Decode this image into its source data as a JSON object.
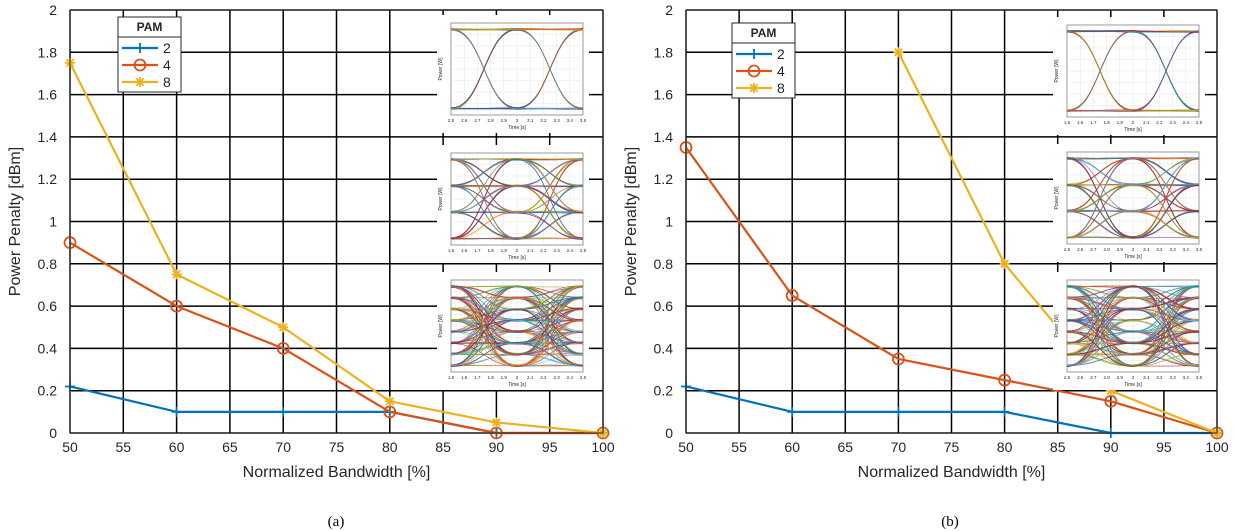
{
  "chart_data": [
    {
      "type": "line",
      "panel_label": "(a)",
      "xlabel": "Normalized Bandwidth [%]",
      "ylabel": "Power Penalty [dBm]",
      "xlim": [
        50,
        100
      ],
      "ylim": [
        0,
        2
      ],
      "xticks": [
        "50",
        "55",
        "60",
        "65",
        "70",
        "75",
        "80",
        "85",
        "90",
        "95",
        "100"
      ],
      "yticks": [
        "0",
        "0.2",
        "0.4",
        "0.6",
        "0.8",
        "1",
        "1.2",
        "1.4",
        "1.6",
        "1.8",
        "2"
      ],
      "grid": true,
      "legend": {
        "title": "PAM",
        "placement": "top-left"
      },
      "series": [
        {
          "name": "2",
          "color": "#0072BD",
          "marker": "plus",
          "points": [
            [
              50,
              0.22
            ],
            [
              60,
              0.1
            ],
            [
              70,
              0.1
            ],
            [
              80,
              0.1
            ],
            [
              90,
              0.0
            ],
            [
              100,
              0.0
            ]
          ]
        },
        {
          "name": "4",
          "color": "#D95319",
          "marker": "circle",
          "points": [
            [
              50,
              0.9
            ],
            [
              60,
              0.6
            ],
            [
              70,
              0.4
            ],
            [
              80,
              0.1
            ],
            [
              90,
              0.0
            ],
            [
              100,
              0.0
            ]
          ]
        },
        {
          "name": "8",
          "color": "#EDB120",
          "marker": "star",
          "points": [
            [
              50,
              1.75
            ],
            [
              60,
              0.75
            ],
            [
              70,
              0.5
            ],
            [
              80,
              0.15
            ],
            [
              90,
              0.05
            ],
            [
              100,
              0.0
            ]
          ]
        }
      ],
      "insets": [
        {
          "name": "eye-diagram-pam2",
          "levels": 2,
          "ylabel": "Power [W]",
          "xlabel": "Time [s]",
          "xticks": [
            "2.5",
            "2.6",
            "2.7",
            "2.8",
            "2.9",
            "3",
            "3.1",
            "3.2",
            "3.3",
            "3.4",
            "3.5"
          ]
        },
        {
          "name": "eye-diagram-pam4",
          "levels": 4,
          "ylabel": "Power [W]",
          "xlabel": "Time [s]",
          "xticks": [
            "1.5",
            "1.6",
            "1.7",
            "1.8",
            "1.9",
            "2",
            "2.1",
            "2.2",
            "2.3",
            "2.4",
            "2.5"
          ]
        },
        {
          "name": "eye-diagram-pam8",
          "levels": 8,
          "ylabel": "Power [W]",
          "xlabel": "Time [s]",
          "xticks": [
            "1.5",
            "1.6",
            "1.7",
            "1.8",
            "1.9",
            "2",
            "2.1",
            "2.2",
            "2.3",
            "2.4",
            "2.5"
          ]
        }
      ]
    },
    {
      "type": "line",
      "panel_label": "(b)",
      "xlabel": "Normalized Bandwidth [%]",
      "ylabel": "Power Penalty [dBm]",
      "xlim": [
        50,
        100
      ],
      "ylim": [
        0,
        2
      ],
      "xticks": [
        "50",
        "55",
        "60",
        "65",
        "70",
        "75",
        "80",
        "85",
        "90",
        "95",
        "100"
      ],
      "yticks": [
        "0",
        "0.2",
        "0.4",
        "0.6",
        "0.8",
        "1",
        "1.2",
        "1.4",
        "1.6",
        "1.8",
        "2"
      ],
      "grid": true,
      "legend": {
        "title": "PAM",
        "placement": "top-left"
      },
      "series": [
        {
          "name": "2",
          "color": "#0072BD",
          "marker": "plus",
          "points": [
            [
              50,
              0.22
            ],
            [
              60,
              0.1
            ],
            [
              70,
              0.1
            ],
            [
              80,
              0.1
            ],
            [
              90,
              0.0
            ],
            [
              100,
              0.0
            ]
          ]
        },
        {
          "name": "4",
          "color": "#D95319",
          "marker": "circle",
          "points": [
            [
              50,
              1.35
            ],
            [
              60,
              0.65
            ],
            [
              70,
              0.35
            ],
            [
              80,
              0.25
            ],
            [
              90,
              0.15
            ],
            [
              100,
              0.0
            ]
          ]
        },
        {
          "name": "8",
          "color": "#EDB120",
          "marker": "star",
          "points": [
            [
              70,
              1.8
            ],
            [
              80,
              0.8
            ],
            [
              90,
              0.2
            ],
            [
              100,
              0.0
            ]
          ]
        }
      ],
      "insets": [
        {
          "name": "eye-diagram-pam2",
          "levels": 2,
          "ylabel": "Power [W]",
          "xlabel": "Time [s]",
          "xticks": [
            "1.5",
            "1.6",
            "1.7",
            "1.8",
            "1.9",
            "2",
            "2.1",
            "2.2",
            "2.3",
            "2.4",
            "2.5"
          ]
        },
        {
          "name": "eye-diagram-pam4",
          "levels": 4,
          "ylabel": "Power [W]",
          "xlabel": "Time [s]",
          "xticks": [
            "2.5",
            "2.6",
            "2.7",
            "2.8",
            "2.9",
            "3",
            "3.1",
            "3.2",
            "3.3",
            "3.4",
            "3.5"
          ]
        },
        {
          "name": "eye-diagram-pam8",
          "levels": 8,
          "ylabel": "Power [W]",
          "xlabel": "Time [s]",
          "xticks": [
            "2.5",
            "2.6",
            "2.7",
            "2.8",
            "2.9",
            "3",
            "3.1",
            "3.2",
            "3.3",
            "3.4",
            "3.5"
          ]
        }
      ]
    }
  ]
}
